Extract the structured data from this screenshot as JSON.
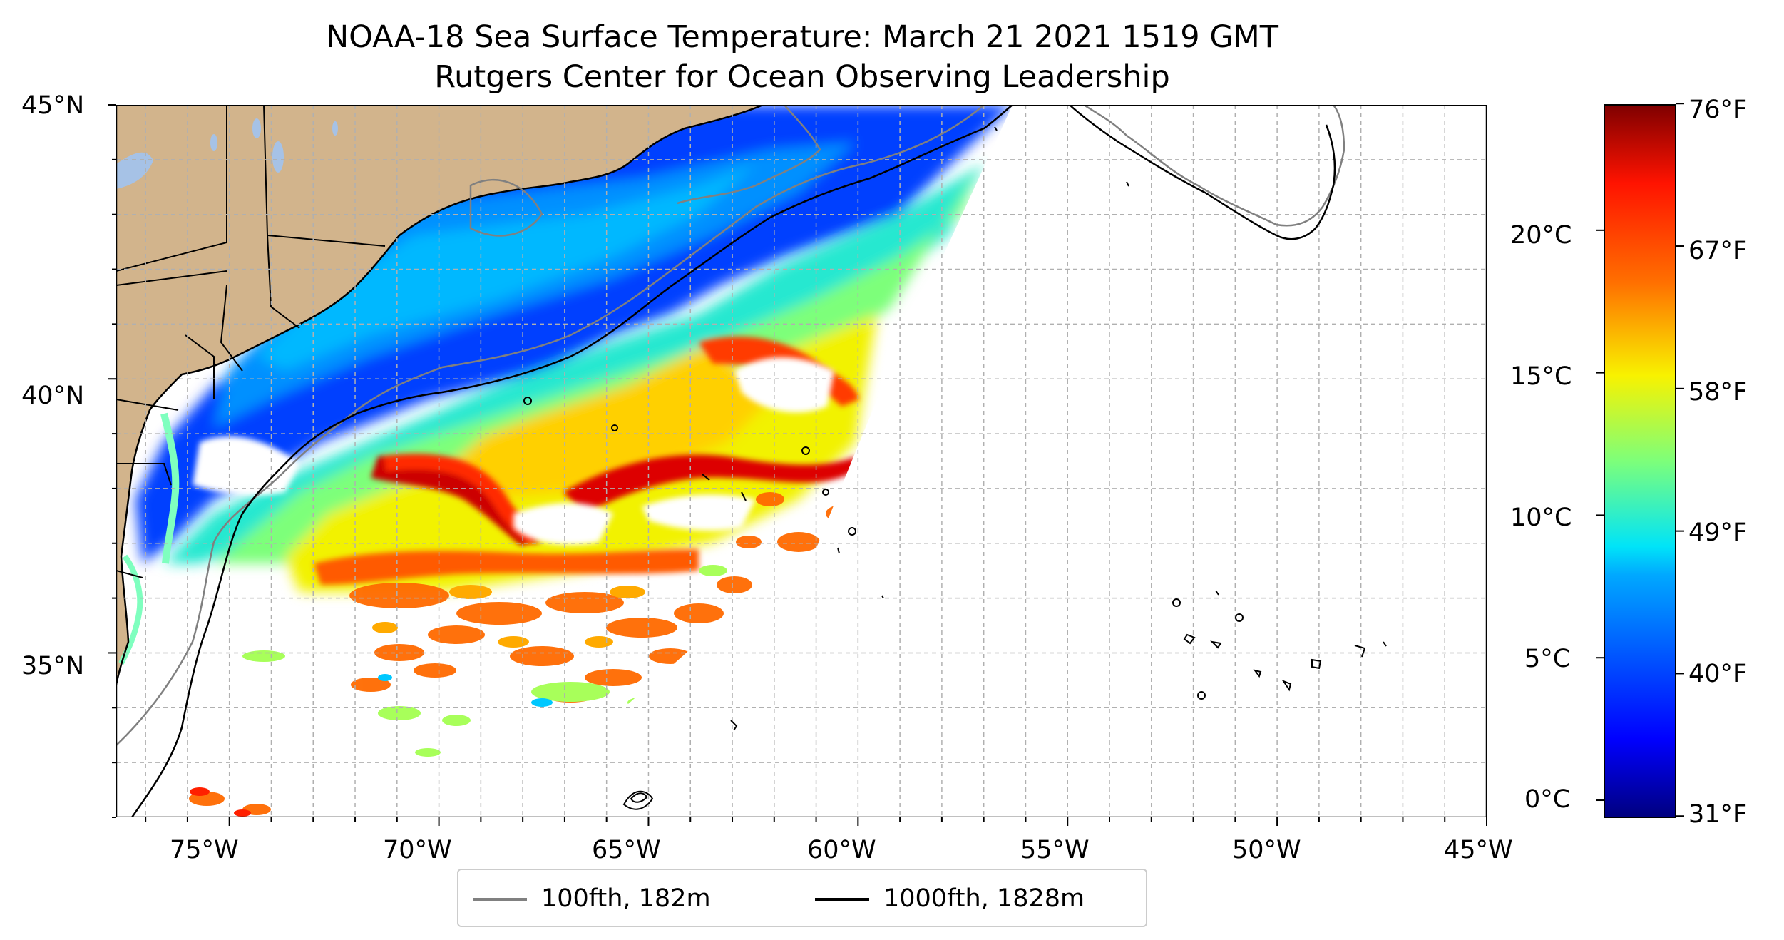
{
  "title": {
    "line1": "NOAA-18 Sea Surface Temperature: March 21 2021 1519 GMT",
    "line2": "Rutgers Center for Ocean Observing Leadership"
  },
  "map": {
    "lon_ticks": [
      "75°W",
      "70°W",
      "65°W",
      "60°W",
      "55°W",
      "50°W",
      "45°W"
    ],
    "lat_ticks": [
      "45°N",
      "40°N",
      "35°N"
    ],
    "extent": {
      "lon_min": -77.7,
      "lon_max": -45.0,
      "lat_min": 32.0,
      "lat_max": 45.0
    },
    "gridlines": "dashed, every 1°",
    "land_color": "#d2b48c",
    "lake_color": "#a6c2e6"
  },
  "colorbar": {
    "celsius_ticks": [
      "20°C",
      "15°C",
      "10°C",
      "5°C",
      "0°C"
    ],
    "fahrenheit_ticks": [
      "76°F",
      "67°F",
      "58°F",
      "49°F",
      "40°F",
      "31°F"
    ],
    "colormap": "jet",
    "colors": [
      "#00007f",
      "#0000ff",
      "#007fff",
      "#00ffff",
      "#7fff7f",
      "#ffff00",
      "#ff7f00",
      "#ff0000",
      "#7f0000"
    ]
  },
  "legend": {
    "items": [
      {
        "label": "100fth, 182m",
        "color": "#808080"
      },
      {
        "label": "1000fth, 1828m",
        "color": "#000000"
      }
    ]
  }
}
